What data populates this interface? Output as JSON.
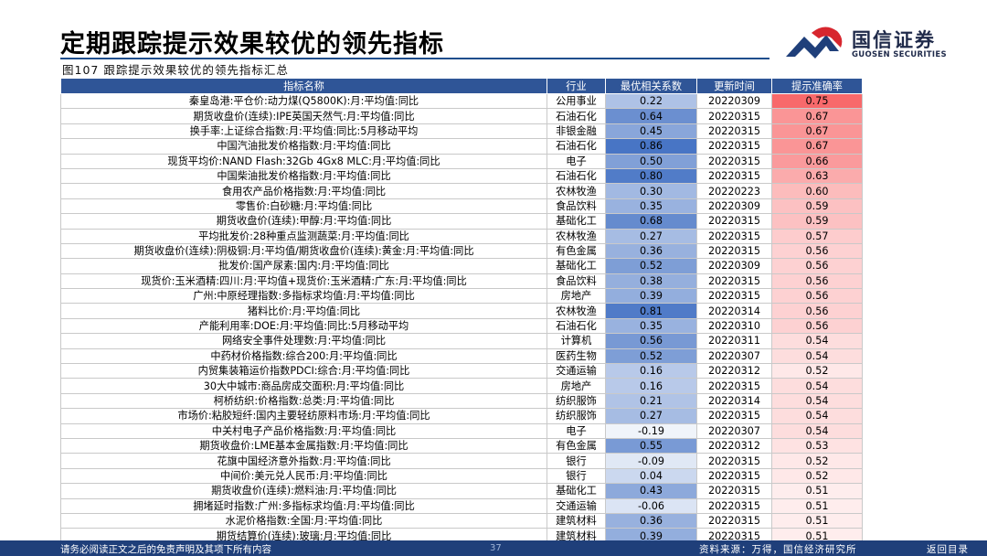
{
  "header": {
    "title": "定期跟踪提示效果较优的领先指标",
    "logo_cn": "国信证券",
    "logo_en": "GUOSEN SECURITIES"
  },
  "figure": {
    "caption": "图107 跟踪提示效果较优的领先指标汇总"
  },
  "table": {
    "columns": [
      "指标名称",
      "行业",
      "最优相关系数",
      "更新时间",
      "提示准确率"
    ],
    "rows": [
      [
        "秦皇岛港:平仓价:动力煤(Q5800K):月:平均值:同比",
        "公用事业",
        "0.22",
        "20220309",
        "0.75"
      ],
      [
        "期货收盘价(连续):IPE英国天然气:月:平均值:同比",
        "石油石化",
        "0.64",
        "20220315",
        "0.67"
      ],
      [
        "换手率:上证综合指数:月:平均值:同比:5月移动平均",
        "非银金融",
        "0.45",
        "20220315",
        "0.67"
      ],
      [
        "中国汽油批发价格指数:月:平均值:同比",
        "石油石化",
        "0.86",
        "20220315",
        "0.67"
      ],
      [
        "现货平均价:NAND Flash:32Gb 4Gx8 MLC:月:平均值:同比",
        "电子",
        "0.50",
        "20220315",
        "0.66"
      ],
      [
        "中国柴油批发价格指数:月:平均值:同比",
        "石油石化",
        "0.80",
        "20220315",
        "0.63"
      ],
      [
        "食用农产品价格指数:月:平均值:同比",
        "农林牧渔",
        "0.30",
        "20220223",
        "0.60"
      ],
      [
        "零售价:白砂糖:月:平均值:同比",
        "食品饮料",
        "0.35",
        "20220309",
        "0.59"
      ],
      [
        "期货收盘价(连续):甲醇:月:平均值:同比",
        "基础化工",
        "0.68",
        "20220315",
        "0.59"
      ],
      [
        "平均批发价:28种重点监测蔬菜:月:平均值:同比",
        "农林牧渔",
        "0.27",
        "20220315",
        "0.57"
      ],
      [
        "期货收盘价(连续):阴极铜:月:平均值/期货收盘价(连续):黄金:月:平均值:同比",
        "有色金属",
        "0.36",
        "20220315",
        "0.56"
      ],
      [
        "批发价:国产尿素:国内:月:平均值:同比",
        "基础化工",
        "0.52",
        "20220309",
        "0.56"
      ],
      [
        "现货价:玉米酒精:四川:月:平均值+现货价:玉米酒精:广东:月:平均值:同比",
        "食品饮料",
        "0.38",
        "20220315",
        "0.56"
      ],
      [
        "广州:中原经理指数:多指标求均值:月:平均值:同比",
        "房地产",
        "0.39",
        "20220315",
        "0.56"
      ],
      [
        "猪料比价:月:平均值:同比",
        "农林牧渔",
        "0.81",
        "20220314",
        "0.56"
      ],
      [
        "产能利用率:DOE:月:平均值:同比:5月移动平均",
        "石油石化",
        "0.35",
        "20220310",
        "0.56"
      ],
      [
        "网络安全事件处理数:月:平均值:同比",
        "计算机",
        "0.56",
        "20220311",
        "0.54"
      ],
      [
        "中药材价格指数:综合200:月:平均值:同比",
        "医药生物",
        "0.52",
        "20220307",
        "0.54"
      ],
      [
        "内贸集装箱运价指数PDCI:综合:月:平均值:同比",
        "交通运输",
        "0.16",
        "20220312",
        "0.52"
      ],
      [
        "30大中城市:商品房成交面积:月:平均值:同比",
        "房地产",
        "0.16",
        "20220315",
        "0.54"
      ],
      [
        "柯桥纺织:价格指数:总类:月:平均值:同比",
        "纺织服饰",
        "0.21",
        "20220314",
        "0.54"
      ],
      [
        "市场价:粘胶短纤:国内主要轻纺原料市场:月:平均值:同比",
        "纺织服饰",
        "0.27",
        "20220315",
        "0.54"
      ],
      [
        "中关村电子产品价格指数:月:平均值:同比",
        "电子",
        "-0.19",
        "20220307",
        "0.54"
      ],
      [
        "期货收盘价:LME基本金属指数:月:平均值:同比",
        "有色金属",
        "0.55",
        "20220312",
        "0.53"
      ],
      [
        "花旗中国经济意外指数:月:平均值:同比",
        "银行",
        "-0.09",
        "20220315",
        "0.52"
      ],
      [
        "中间价:美元兑人民币:月:平均值:同比",
        "银行",
        "0.04",
        "20220315",
        "0.52"
      ],
      [
        "期货收盘价(连续):燃料油:月:平均值:同比",
        "基础化工",
        "0.43",
        "20220315",
        "0.51"
      ],
      [
        "拥堵延时指数:广州:多指标求均值:月:平均值:同比",
        "交通运输",
        "-0.06",
        "20220315",
        "0.51"
      ],
      [
        "水泥价格指数:全国:月:平均值:同比",
        "建筑材料",
        "0.36",
        "20220315",
        "0.51"
      ],
      [
        "期货结算价(连续):玻璃:月:平均值:同比",
        "建筑材料",
        "0.39",
        "20220315",
        "0.51"
      ]
    ]
  },
  "colors": {
    "header_bg": "#2f5597",
    "corr_high": "#4472c4",
    "accuracy_high": "#f8696b",
    "footer_bg": "#1f3f7a"
  },
  "footer": {
    "disclaimer": "请务必阅读正文之后的免责声明及其项下所有内容",
    "page": "37",
    "source": "资料来源：万得，国信经济研究所",
    "back": "返回目录"
  }
}
